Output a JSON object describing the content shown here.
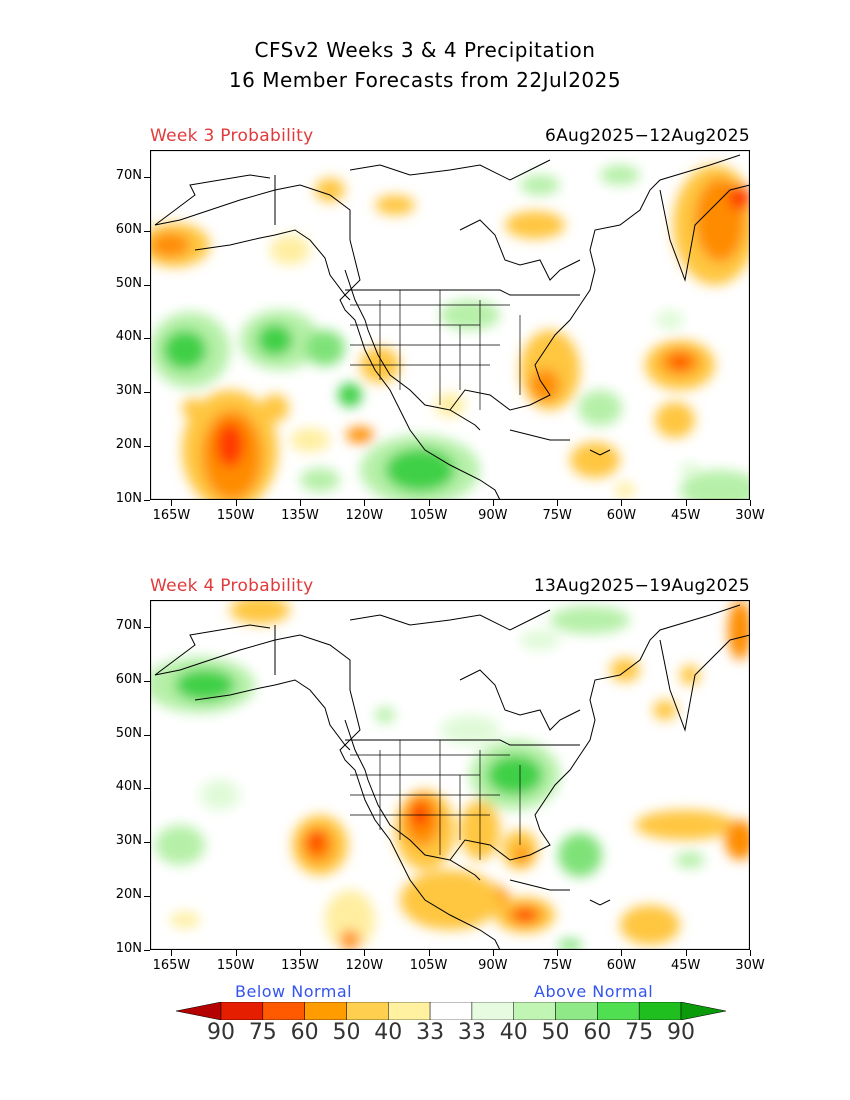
{
  "header": {
    "title_line1": "CFSv2 Weeks 3 & 4 Precipitation",
    "title_line2": "16 Member Forecasts from 22Jul2025"
  },
  "panels": [
    {
      "label": "Week 3 Probability",
      "dates": "6Aug2025−12Aug2025"
    },
    {
      "label": "Week 4 Probability",
      "dates": "13Aug2025−19Aug2025"
    }
  ],
  "axes": {
    "lat_labels": [
      "70N",
      "60N",
      "50N",
      "40N",
      "30N",
      "20N",
      "10N"
    ],
    "lat_values": [
      70,
      60,
      50,
      40,
      30,
      20,
      10
    ],
    "lon_labels": [
      "165W",
      "150W",
      "135W",
      "120W",
      "105W",
      "90W",
      "75W",
      "60W",
      "45W",
      "30W"
    ],
    "lon_values": [
      -165,
      -150,
      -135,
      -120,
      -105,
      -90,
      -75,
      -60,
      -45,
      -30
    ],
    "lon_range": [
      -170,
      -30
    ],
    "lat_range": [
      10,
      75
    ]
  },
  "legend": {
    "below_label": "Below Normal",
    "above_label": "Above Normal",
    "numbers": [
      "90",
      "75",
      "60",
      "50",
      "40",
      "33",
      "33",
      "40",
      "50",
      "60",
      "75",
      "90"
    ],
    "colors": [
      "#b40000",
      "#e61e00",
      "#ff5a00",
      "#ff9c00",
      "#ffcf4f",
      "#fff1a0",
      "#ffffff",
      "#e6fbe0",
      "#c0f5b4",
      "#8fe986",
      "#50df50",
      "#1fbf1f",
      "#0a9a0a"
    ]
  },
  "map_features": {
    "land_color": "#ffffff",
    "coast_color": "#000000",
    "anomaly_below": [
      "#ff3a00",
      "#ff8c00",
      "#ffc640",
      "#ffeea0"
    ],
    "anomaly_above": [
      "#e0fad8",
      "#b6f0a8",
      "#7fe278",
      "#3fd046"
    ]
  }
}
